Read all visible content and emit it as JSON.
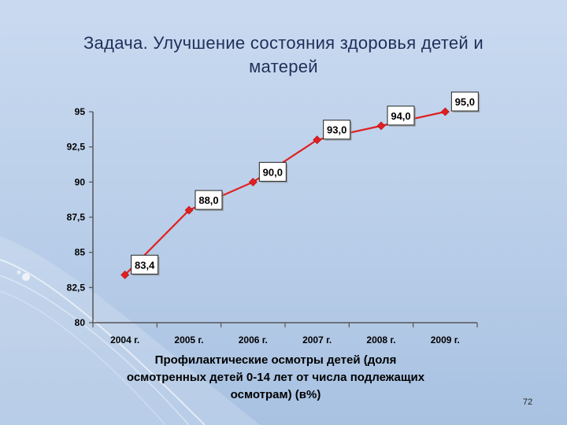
{
  "slide": {
    "title_line1": "Задача. Улучшение состояния здоровья детей и",
    "title_line2": "матерей",
    "page_number": "72"
  },
  "chart_data": {
    "type": "line",
    "categories": [
      "2004 г.",
      "2005 г.",
      "2006 г.",
      "2007 г.",
      "2008 г.",
      "2009 г."
    ],
    "series": [
      {
        "values": [
          83.4,
          88.0,
          90.0,
          93.0,
          94.0,
          95.0
        ],
        "labels": [
          "83,4",
          "88,0",
          "90,0",
          "93,0",
          "94,0",
          "95,0"
        ],
        "color": "#e02020"
      }
    ],
    "ylim": [
      80,
      95
    ],
    "yticks": [
      80,
      82.5,
      85,
      87.5,
      90,
      92.5,
      95
    ],
    "ytick_labels": [
      "80",
      "82,5",
      "85",
      "87,5",
      "90",
      "92,5",
      "95"
    ],
    "caption": [
      "Профилактические осмотры детей (доля",
      "осмотренных детей 0-14 лет от числа подлежащих",
      "осмотрам) (в%)"
    ],
    "grid": false,
    "legend": "none"
  }
}
